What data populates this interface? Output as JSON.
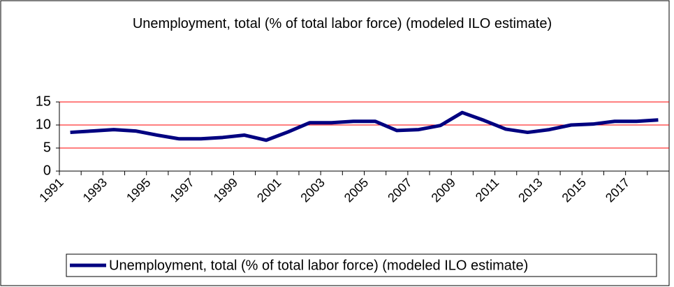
{
  "chart_data": {
    "type": "line",
    "title": "Unemployment, total (% of total labor force) (modeled ILO estimate)",
    "categories": [
      "1991",
      null,
      "1993",
      null,
      "1995",
      null,
      "1997",
      null,
      "1999",
      null,
      "2001",
      null,
      "2003",
      null,
      "2005",
      null,
      "2007",
      null,
      "2009",
      null,
      "2011",
      null,
      "2013",
      null,
      "2015",
      null,
      "2017",
      null
    ],
    "series": [
      {
        "name": "Unemployment, total (% of total labor force) (modeled ILO estimate)",
        "color": "#000080",
        "values": [
          8.4,
          8.7,
          9.0,
          8.7,
          7.8,
          7.0,
          7.0,
          7.3,
          7.8,
          6.7,
          8.5,
          10.5,
          10.5,
          10.8,
          10.8,
          8.8,
          9.0,
          9.9,
          12.7,
          11.0,
          9.1,
          8.4,
          9.0,
          10.0,
          10.2,
          10.8,
          10.8,
          11.1
        ]
      }
    ],
    "ylim": [
      0,
      15
    ],
    "yticks": [
      0,
      5,
      10,
      15
    ],
    "grid": true,
    "grid_color": "#ff0000",
    "legend": "bottom"
  }
}
